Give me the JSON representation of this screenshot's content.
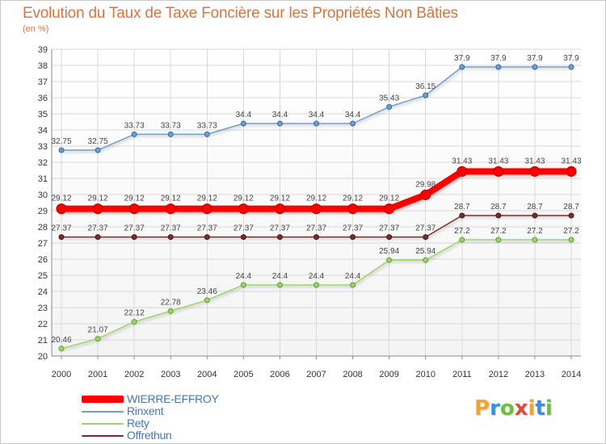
{
  "header": {
    "title": "Evolution du Taux de Taxe Foncière sur les Propriétés Non Bâties",
    "subtitle": "(en %)"
  },
  "logo": {
    "letters": [
      "P",
      "r",
      "o",
      "x",
      "i",
      "t",
      "i"
    ],
    "colors": [
      "#f2a32c",
      "#3a8fd6",
      "#6cbf3f",
      "#e04a3a",
      "#f2a32c",
      "#3a8fd6",
      "#6cbf3f"
    ]
  },
  "chart_data": {
    "type": "line",
    "title": "Evolution du Taux de Taxe Foncière sur les Propriétés Non Bâties",
    "ylabel": "(en %)",
    "xlabel": "",
    "x": [
      "2000",
      "2001",
      "2002",
      "2003",
      "2004",
      "2005",
      "2006",
      "2007",
      "2008",
      "2009",
      "2010",
      "2011",
      "2012",
      "2013",
      "2014"
    ],
    "ylim": [
      20,
      39
    ],
    "yticks": [
      "20",
      "21",
      "22",
      "23",
      "24",
      "25",
      "26",
      "27",
      "28",
      "29",
      "30",
      "31",
      "32",
      "33",
      "34",
      "35",
      "36",
      "37",
      "38",
      "39"
    ],
    "grid": true,
    "legend_position": "bottom-left",
    "series": [
      {
        "name": "WIERRE-EFFROY",
        "color": "#ff0000",
        "values": [
          29.12,
          29.12,
          29.12,
          29.12,
          29.12,
          29.12,
          29.12,
          29.12,
          29.12,
          29.12,
          29.98,
          31.43,
          31.43,
          31.43,
          31.43
        ],
        "labels": [
          "29.12",
          "29.12",
          "29.12",
          "29.12",
          "29.12",
          "29.12",
          "29.12",
          "29.12",
          "29.12",
          "29.12",
          "29.98",
          "31.43",
          "31.43",
          "31.43",
          "31.43"
        ]
      },
      {
        "name": "Rinxent",
        "color": "#6e9fcf",
        "values": [
          32.75,
          32.75,
          33.73,
          33.73,
          33.73,
          34.4,
          34.4,
          34.4,
          34.4,
          35.43,
          36.15,
          37.9,
          37.9,
          37.9,
          37.9
        ],
        "labels": [
          "32.75",
          "32.75",
          "33.73",
          "33.73",
          "33.73",
          "34.4",
          "34.4",
          "34.4",
          "34.4",
          "35.43",
          "36.15",
          "37.9",
          "37.9",
          "37.9",
          "37.9"
        ]
      },
      {
        "name": "Rety",
        "color": "#9dd36e",
        "values": [
          20.46,
          21.07,
          22.12,
          22.78,
          23.46,
          24.4,
          24.4,
          24.4,
          24.4,
          25.94,
          25.94,
          27.2,
          27.2,
          27.2,
          27.2
        ],
        "labels": [
          "20.46",
          "21.07",
          "22.12",
          "22.78",
          "23.46",
          "24.4",
          "24.4",
          "24.4",
          "24.4",
          "25.94",
          "25.94",
          "27.2",
          "27.2",
          "27.2",
          "27.2"
        ]
      },
      {
        "name": "Offrethun",
        "color": "#7b2c2c",
        "values": [
          27.37,
          27.37,
          27.37,
          27.37,
          27.37,
          27.37,
          27.37,
          27.37,
          27.37,
          27.37,
          27.37,
          28.7,
          28.7,
          28.7,
          28.7
        ],
        "labels": [
          "27.37",
          "27.37",
          "27.37",
          "27.37",
          "27.37",
          "27.37",
          "27.37",
          "27.37",
          "27.37",
          "27.37",
          "27.37",
          "28.7",
          "28.7",
          "28.7",
          "28.7"
        ]
      }
    ]
  }
}
